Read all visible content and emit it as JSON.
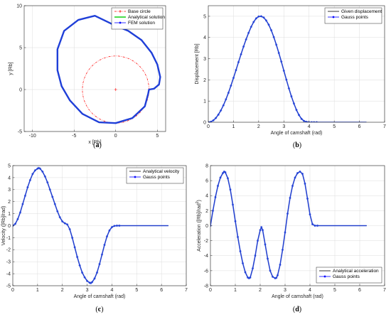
{
  "chart_data": [
    {
      "id": "a",
      "type": "line",
      "caption_letter": "a",
      "xlabel": "x [Rb]",
      "ylabel": "y [Rb]",
      "xlim": [
        -11,
        6
      ],
      "ylim": [
        -5,
        10
      ],
      "xticks": [
        -10,
        -5,
        0,
        5
      ],
      "yticks": [
        -5,
        0,
        5,
        10
      ],
      "grid": true,
      "legend_position": "top-right",
      "legend": [
        {
          "name": "Base circle",
          "color": "#ff0000",
          "style": "dash-dot",
          "marker": "plus"
        },
        {
          "name": "Analytical solution",
          "color": "#00cc00",
          "style": "solid",
          "marker": "none"
        },
        {
          "name": "FEM solution",
          "color": "#0000ff",
          "style": "solid",
          "marker": "star"
        }
      ],
      "series": [
        {
          "name": "Base circle",
          "shape": "circle",
          "center": [
            0,
            0
          ],
          "radius": 4
        },
        {
          "name": "FEM solution",
          "x": [
            0,
            1.5,
            3.1,
            4.3,
            5.0,
            5.35,
            5.2,
            4.6,
            4.0,
            3.9,
            3.5,
            2.0,
            0,
            -2.0,
            -4.0,
            -5.5,
            -6.5,
            -7.0,
            -7.0,
            -6.2,
            -4.5,
            -2.5,
            0
          ],
          "y": [
            7.6,
            7.0,
            5.9,
            4.4,
            3.0,
            1.5,
            0.6,
            0.1,
            0,
            -0.5,
            -2.0,
            -3.4,
            -4.0,
            -3.9,
            -2.9,
            -1.3,
            0.4,
            2.3,
            4.8,
            7.0,
            8.3,
            8.8,
            7.6
          ]
        }
      ]
    },
    {
      "id": "b",
      "type": "line",
      "caption_letter": "b",
      "xlabel": "Angle of camshaft (rad)",
      "ylabel": "Displacement [Rb]",
      "xlim": [
        0,
        7
      ],
      "ylim": [
        0,
        5.5
      ],
      "xticks": [
        0,
        1,
        2,
        3,
        4,
        5,
        6,
        7
      ],
      "yticks": [
        0,
        1,
        2,
        3,
        4,
        5
      ],
      "grid": true,
      "legend_position": "top-right",
      "legend": [
        {
          "name": "Given displacement",
          "color": "#000000",
          "style": "solid",
          "marker": "none"
        },
        {
          "name": "Gauss points",
          "color": "#0000ff",
          "style": "solid",
          "marker": "star"
        }
      ],
      "series": [
        {
          "name": "Given displacement",
          "x": [
            0,
            0.1,
            0.2,
            0.3,
            0.4,
            0.5,
            0.6,
            0.7,
            0.8,
            0.9,
            1.0,
            1.1,
            1.2,
            1.3,
            1.4,
            1.5,
            1.6,
            1.7,
            1.8,
            1.9,
            2.0,
            2.1,
            2.2,
            2.3,
            2.4,
            2.5,
            2.6,
            2.7,
            2.8,
            2.9,
            3.0,
            3.1,
            3.2,
            3.3,
            3.4,
            3.5,
            3.6,
            3.7,
            3.8,
            3.9,
            4.0,
            4.1,
            4.2,
            4.3,
            5.0,
            6.28
          ],
          "y": [
            0,
            0.02,
            0.09,
            0.2,
            0.36,
            0.56,
            0.8,
            1.08,
            1.39,
            1.73,
            2.09,
            2.46,
            2.84,
            3.21,
            3.57,
            3.91,
            4.22,
            4.5,
            4.73,
            4.9,
            4.99,
            5.0,
            4.94,
            4.8,
            4.6,
            4.34,
            4.02,
            3.66,
            3.27,
            2.86,
            2.43,
            2.01,
            1.6,
            1.22,
            0.88,
            0.58,
            0.34,
            0.16,
            0.06,
            0.02,
            0,
            0,
            0,
            0,
            0,
            0
          ]
        }
      ]
    },
    {
      "id": "c",
      "type": "line",
      "caption_letter": "c",
      "xlabel": "Angle of camshaft (rad)",
      "ylabel": "Velocity ([Rb]/rad)",
      "xlim": [
        0,
        7
      ],
      "ylim": [
        -5,
        5
      ],
      "xticks": [
        0,
        1,
        2,
        3,
        4,
        5,
        6,
        7
      ],
      "yticks": [
        -5,
        -4,
        -3,
        -2,
        -1,
        0,
        1,
        2,
        3,
        4,
        5
      ],
      "grid": true,
      "legend_position": "top-right",
      "legend": [
        {
          "name": "Analytical velocity",
          "color": "#000000",
          "style": "solid",
          "marker": "none"
        },
        {
          "name": "Gauss points",
          "color": "#0000ff",
          "style": "solid",
          "marker": "star"
        }
      ],
      "series": [
        {
          "name": "Analytical velocity",
          "x": [
            0,
            0.1,
            0.2,
            0.3,
            0.4,
            0.5,
            0.6,
            0.7,
            0.8,
            0.9,
            1.0,
            1.05,
            1.1,
            1.2,
            1.3,
            1.4,
            1.5,
            1.6,
            1.7,
            1.8,
            1.9,
            2.0,
            2.1,
            2.2,
            2.3,
            2.4,
            2.5,
            2.6,
            2.7,
            2.8,
            2.9,
            3.0,
            3.1,
            3.15,
            3.2,
            3.3,
            3.4,
            3.5,
            3.6,
            3.7,
            3.8,
            3.9,
            4.0,
            4.1,
            4.2,
            4.3,
            5.0,
            6.28
          ],
          "y": [
            0,
            0.15,
            0.55,
            1.1,
            1.8,
            2.5,
            3.2,
            3.8,
            4.3,
            4.6,
            4.75,
            4.8,
            4.75,
            4.5,
            4.1,
            3.6,
            3.0,
            2.4,
            1.8,
            1.2,
            0.7,
            0.35,
            0.2,
            0.1,
            -0.3,
            -1.0,
            -1.8,
            -2.6,
            -3.3,
            -3.9,
            -4.3,
            -4.6,
            -4.75,
            -4.78,
            -4.7,
            -4.4,
            -3.9,
            -3.2,
            -2.4,
            -1.6,
            -0.9,
            -0.4,
            -0.12,
            -0.02,
            0,
            0,
            0,
            0
          ]
        }
      ]
    },
    {
      "id": "d",
      "type": "line",
      "caption_letter": "d",
      "xlabel": "Angle of camshaft (rad)",
      "ylabel": "Acceleration ([Rb]/rad",
      "ylabel_sup": "2",
      "ylabel_end": ")",
      "xlim": [
        0,
        7
      ],
      "ylim": [
        -8,
        8
      ],
      "xticks": [
        0,
        1,
        2,
        3,
        4,
        5,
        6,
        7
      ],
      "yticks": [
        -8,
        -6,
        -4,
        -2,
        0,
        2,
        4,
        6,
        8
      ],
      "grid": true,
      "legend_position": "bottom-right",
      "legend": [
        {
          "name": "Analytical acceleration",
          "color": "#000000",
          "style": "solid",
          "marker": "none"
        },
        {
          "name": "Gauss points",
          "color": "#0000ff",
          "style": "solid",
          "marker": "star"
        }
      ],
      "series": [
        {
          "name": "Analytical acceleration",
          "x": [
            0,
            0.1,
            0.2,
            0.3,
            0.4,
            0.5,
            0.55,
            0.6,
            0.7,
            0.8,
            0.9,
            1.0,
            1.1,
            1.2,
            1.3,
            1.4,
            1.5,
            1.55,
            1.6,
            1.7,
            1.8,
            1.9,
            2.0,
            2.05,
            2.1,
            2.2,
            2.3,
            2.4,
            2.5,
            2.6,
            2.65,
            2.7,
            2.8,
            2.9,
            3.0,
            3.1,
            3.2,
            3.3,
            3.4,
            3.5,
            3.6,
            3.7,
            3.8,
            3.9,
            4.0,
            4.1,
            4.2,
            4.3,
            5.0,
            6.28
          ],
          "y": [
            0,
            2.0,
            3.8,
            5.3,
            6.4,
            7.0,
            7.2,
            7.1,
            6.3,
            4.8,
            2.8,
            0.6,
            -1.5,
            -3.4,
            -5.0,
            -6.2,
            -6.9,
            -7.0,
            -6.9,
            -5.7,
            -4.0,
            -2.0,
            -0.6,
            -0.2,
            -0.6,
            -2.5,
            -4.4,
            -6.0,
            -6.8,
            -7.0,
            -6.95,
            -6.6,
            -5.2,
            -3.2,
            -0.9,
            1.6,
            3.7,
            5.3,
            6.4,
            7.0,
            7.2,
            6.9,
            5.6,
            3.6,
            1.5,
            0.2,
            0,
            0,
            0,
            0
          ]
        }
      ]
    }
  ]
}
